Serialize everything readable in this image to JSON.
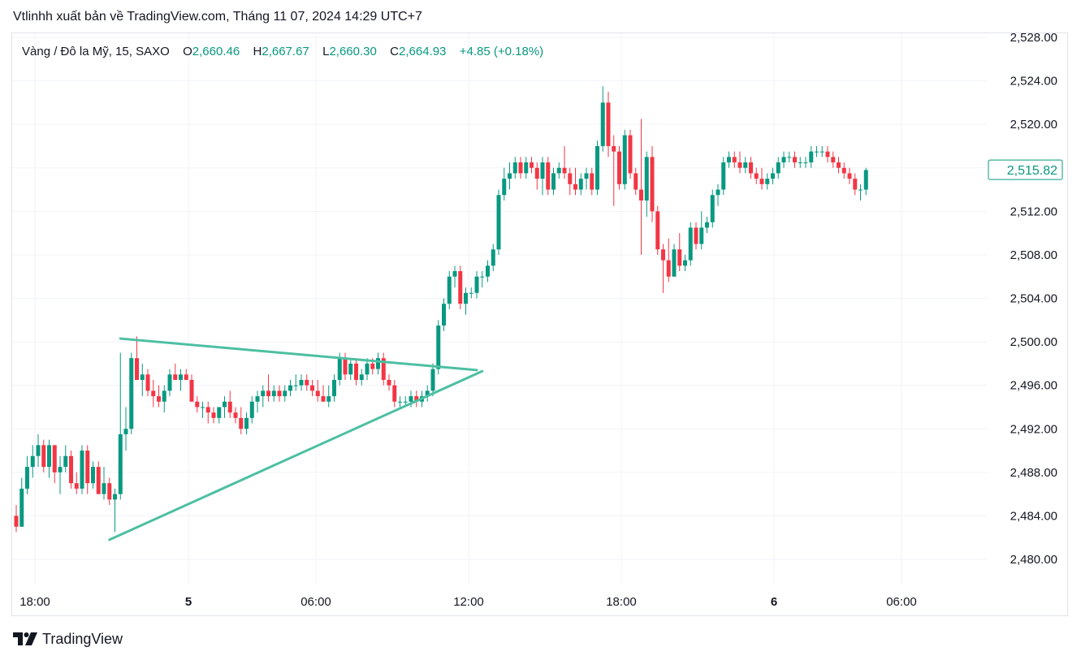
{
  "header": {
    "title": "Vtlinhh xuất bản về TradingView.com, Tháng 11 07, 2024 14:29 UTC+7"
  },
  "legend": {
    "symbol": "Vàng / Đô la Mỹ, 15, SAXO",
    "o_label": "O",
    "o_value": "2,660.46",
    "h_label": "H",
    "h_value": "2,667.67",
    "l_label": "L",
    "l_value": "2,660.30",
    "c_label": "C",
    "c_value": "2,664.93",
    "change": "+4.85 (+0.18%)"
  },
  "price_axis": {
    "ticks": [
      "2,528.00",
      "2,524.00",
      "2,520.00",
      "2,516.00",
      "2,512.00",
      "2,508.00",
      "2,504.00",
      "2,500.00",
      "2,496.00",
      "2,492.00",
      "2,488.00",
      "2,484.00",
      "2,480.00"
    ],
    "last_price": "2,515.82"
  },
  "time_axis": {
    "labels": [
      "18:00",
      "5",
      "06:00",
      "12:00",
      "18:00",
      "6",
      "06:00"
    ]
  },
  "branding": {
    "name": "TradingView"
  },
  "colors": {
    "up": "#089981",
    "down": "#f23645",
    "trendline": "#4dbfa3",
    "grid": "#f0f3fa",
    "text": "#131722"
  },
  "chart_data": {
    "type": "candlestick",
    "title": "Vàng / Đô la Mỹ, 15, SAXO",
    "interval": "15",
    "ylim": [
      2478,
      2529
    ],
    "yticks": [
      2480,
      2484,
      2488,
      2492,
      2496,
      2500,
      2504,
      2508,
      2512,
      2516,
      2520,
      2524,
      2528
    ],
    "xticks": [
      "18:00",
      "5",
      "06:00",
      "12:00",
      "18:00",
      "6",
      "06:00"
    ],
    "grid": true,
    "candles_ohlc": [
      [
        2484.0,
        2485.0,
        2482.5,
        2483.0
      ],
      [
        2483.0,
        2487.5,
        2483.0,
        2486.5
      ],
      [
        2486.5,
        2489.5,
        2486.0,
        2488.5
      ],
      [
        2488.5,
        2490.5,
        2487.5,
        2489.5
      ],
      [
        2489.5,
        2491.5,
        2488.5,
        2490.5
      ],
      [
        2490.5,
        2491.0,
        2488.0,
        2488.5
      ],
      [
        2488.5,
        2491.0,
        2487.5,
        2490.5
      ],
      [
        2490.5,
        2490.5,
        2487.0,
        2488.0
      ],
      [
        2488.0,
        2489.5,
        2486.0,
        2488.5
      ],
      [
        2488.5,
        2490.5,
        2488.0,
        2489.5
      ],
      [
        2489.5,
        2490.0,
        2486.5,
        2487.0
      ],
      [
        2487.0,
        2488.0,
        2486.0,
        2486.5
      ],
      [
        2486.5,
        2490.5,
        2486.0,
        2490.0
      ],
      [
        2490.0,
        2490.5,
        2486.0,
        2487.0
      ],
      [
        2487.0,
        2489.0,
        2486.5,
        2488.5
      ],
      [
        2488.5,
        2489.0,
        2486.0,
        2486.0
      ],
      [
        2486.0,
        2488.5,
        2485.5,
        2487.0
      ],
      [
        2487.0,
        2487.5,
        2485.0,
        2485.5
      ],
      [
        2485.5,
        2486.5,
        2482.5,
        2486.0
      ],
      [
        2486.0,
        2499.0,
        2485.5,
        2491.5
      ],
      [
        2491.5,
        2494.0,
        2490.0,
        2492.0
      ],
      [
        2492.0,
        2499.0,
        2491.5,
        2498.5
      ],
      [
        2498.5,
        2500.5,
        2496.5,
        2496.5
      ],
      [
        2496.5,
        2498.0,
        2495.0,
        2497.0
      ],
      [
        2497.0,
        2497.5,
        2495.0,
        2495.5
      ],
      [
        2495.5,
        2496.5,
        2494.0,
        2495.0
      ],
      [
        2495.0,
        2496.0,
        2494.0,
        2494.5
      ],
      [
        2494.5,
        2496.0,
        2493.5,
        2495.5
      ],
      [
        2495.5,
        2497.5,
        2495.0,
        2497.0
      ],
      [
        2497.0,
        2498.0,
        2496.5,
        2496.5
      ],
      [
        2496.5,
        2497.5,
        2495.5,
        2497.0
      ],
      [
        2497.0,
        2497.5,
        2496.5,
        2496.5
      ],
      [
        2496.5,
        2497.0,
        2494.5,
        2494.5
      ],
      [
        2494.5,
        2495.0,
        2493.5,
        2494.0
      ],
      [
        2494.0,
        2494.5,
        2493.0,
        2494.0
      ],
      [
        2494.0,
        2494.5,
        2492.5,
        2493.5
      ],
      [
        2493.5,
        2494.0,
        2492.5,
        2493.0
      ],
      [
        2493.0,
        2494.0,
        2492.5,
        2494.0
      ],
      [
        2494.0,
        2495.0,
        2493.0,
        2494.5
      ],
      [
        2494.5,
        2495.5,
        2493.0,
        2493.5
      ],
      [
        2493.5,
        2494.0,
        2492.5,
        2493.0
      ],
      [
        2493.0,
        2494.0,
        2491.5,
        2492.0
      ],
      [
        2492.0,
        2493.5,
        2491.5,
        2493.0
      ],
      [
        2493.0,
        2495.0,
        2492.5,
        2494.5
      ],
      [
        2494.5,
        2495.5,
        2493.5,
        2495.0
      ],
      [
        2495.0,
        2496.0,
        2494.0,
        2495.5
      ],
      [
        2495.5,
        2497.0,
        2494.5,
        2495.0
      ],
      [
        2495.0,
        2496.0,
        2494.5,
        2495.5
      ],
      [
        2495.5,
        2496.0,
        2494.5,
        2495.0
      ],
      [
        2495.0,
        2496.0,
        2494.5,
        2495.5
      ],
      [
        2495.5,
        2496.5,
        2495.0,
        2496.0
      ],
      [
        2496.0,
        2497.0,
        2495.5,
        2496.0
      ],
      [
        2496.0,
        2497.0,
        2495.5,
        2496.5
      ],
      [
        2496.5,
        2497.0,
        2495.5,
        2496.0
      ],
      [
        2496.0,
        2496.5,
        2495.0,
        2495.5
      ],
      [
        2495.5,
        2496.5,
        2494.5,
        2495.0
      ],
      [
        2495.0,
        2496.0,
        2494.5,
        2494.5
      ],
      [
        2494.5,
        2496.0,
        2494.0,
        2495.0
      ],
      [
        2495.0,
        2497.0,
        2494.5,
        2496.5
      ],
      [
        2496.5,
        2499.0,
        2496.0,
        2498.5
      ],
      [
        2498.5,
        2499.0,
        2496.5,
        2497.0
      ],
      [
        2497.0,
        2498.5,
        2496.5,
        2498.0
      ],
      [
        2498.0,
        2498.5,
        2496.0,
        2496.5
      ],
      [
        2496.5,
        2497.5,
        2496.0,
        2497.0
      ],
      [
        2497.0,
        2498.5,
        2496.5,
        2498.0
      ],
      [
        2498.0,
        2498.5,
        2497.0,
        2497.5
      ],
      [
        2497.5,
        2499.0,
        2497.0,
        2498.5
      ],
      [
        2498.5,
        2499.0,
        2496.0,
        2496.5
      ],
      [
        2496.5,
        2497.0,
        2495.5,
        2496.0
      ],
      [
        2496.0,
        2496.5,
        2494.0,
        2494.5
      ],
      [
        2494.5,
        2495.0,
        2494.0,
        2494.5
      ],
      [
        2494.5,
        2495.0,
        2494.0,
        2494.5
      ],
      [
        2494.5,
        2495.5,
        2494.0,
        2495.0
      ],
      [
        2495.0,
        2495.5,
        2494.0,
        2494.5
      ],
      [
        2494.5,
        2495.5,
        2494.0,
        2495.0
      ],
      [
        2495.0,
        2496.0,
        2494.5,
        2495.5
      ],
      [
        2495.5,
        2498.0,
        2495.0,
        2497.5
      ],
      [
        2497.5,
        2502.0,
        2497.0,
        2501.5
      ],
      [
        2501.5,
        2504.0,
        2501.0,
        2503.5
      ],
      [
        2503.5,
        2506.5,
        2503.0,
        2506.0
      ],
      [
        2506.0,
        2507.0,
        2505.0,
        2506.5
      ],
      [
        2506.5,
        2507.0,
        2503.0,
        2503.5
      ],
      [
        2503.5,
        2505.0,
        2502.5,
        2504.5
      ],
      [
        2504.5,
        2505.0,
        2504.0,
        2504.5
      ],
      [
        2504.5,
        2506.5,
        2504.0,
        2506.0
      ],
      [
        2506.0,
        2506.5,
        2505.0,
        2506.0
      ],
      [
        2506.0,
        2507.5,
        2505.5,
        2507.0
      ],
      [
        2507.0,
        2509.0,
        2506.5,
        2508.5
      ],
      [
        2508.5,
        2514.0,
        2508.0,
        2513.5
      ],
      [
        2513.5,
        2516.0,
        2513.0,
        2515.0
      ],
      [
        2515.0,
        2516.5,
        2514.0,
        2515.5
      ],
      [
        2515.5,
        2517.0,
        2515.0,
        2516.5
      ],
      [
        2516.5,
        2517.0,
        2515.0,
        2515.5
      ],
      [
        2515.5,
        2517.0,
        2515.0,
        2516.5
      ],
      [
        2516.5,
        2517.0,
        2515.5,
        2516.0
      ],
      [
        2516.0,
        2516.5,
        2514.0,
        2515.0
      ],
      [
        2515.0,
        2517.0,
        2513.5,
        2516.5
      ],
      [
        2516.5,
        2517.0,
        2513.5,
        2514.0
      ],
      [
        2514.0,
        2516.0,
        2513.5,
        2515.5
      ],
      [
        2515.5,
        2516.5,
        2515.0,
        2516.0
      ],
      [
        2516.0,
        2518.0,
        2515.0,
        2515.5
      ],
      [
        2515.5,
        2516.0,
        2513.5,
        2514.5
      ],
      [
        2514.5,
        2516.0,
        2513.5,
        2514.0
      ],
      [
        2514.0,
        2515.5,
        2513.5,
        2515.0
      ],
      [
        2515.0,
        2516.0,
        2514.0,
        2515.5
      ],
      [
        2515.5,
        2516.0,
        2513.5,
        2514.0
      ],
      [
        2514.0,
        2518.5,
        2513.5,
        2518.0
      ],
      [
        2518.0,
        2523.5,
        2517.5,
        2522.0
      ],
      [
        2522.0,
        2523.0,
        2517.0,
        2518.0
      ],
      [
        2518.0,
        2519.0,
        2512.5,
        2517.5
      ],
      [
        2517.5,
        2518.0,
        2514.0,
        2514.5
      ],
      [
        2514.5,
        2519.5,
        2514.0,
        2519.0
      ],
      [
        2519.0,
        2519.5,
        2515.0,
        2515.5
      ],
      [
        2515.5,
        2516.0,
        2513.5,
        2514.0
      ],
      [
        2514.0,
        2520.5,
        2508.0,
        2513.0
      ],
      [
        2513.0,
        2517.5,
        2511.5,
        2517.0
      ],
      [
        2517.0,
        2518.0,
        2511.0,
        2512.0
      ],
      [
        2512.0,
        2512.5,
        2508.0,
        2508.5
      ],
      [
        2508.5,
        2509.0,
        2504.5,
        2507.5
      ],
      [
        2507.5,
        2509.5,
        2505.5,
        2506.0
      ],
      [
        2506.0,
        2509.0,
        2506.0,
        2508.5
      ],
      [
        2508.5,
        2510.0,
        2506.5,
        2507.0
      ],
      [
        2507.0,
        2508.0,
        2506.5,
        2507.5
      ],
      [
        2507.5,
        2511.0,
        2507.0,
        2510.5
      ],
      [
        2510.5,
        2511.0,
        2508.5,
        2509.0
      ],
      [
        2509.0,
        2512.0,
        2508.5,
        2510.5
      ],
      [
        2510.5,
        2511.5,
        2510.0,
        2511.0
      ],
      [
        2511.0,
        2514.0,
        2510.5,
        2513.5
      ],
      [
        2513.5,
        2514.5,
        2512.5,
        2514.0
      ],
      [
        2514.0,
        2517.0,
        2513.5,
        2516.5
      ],
      [
        2516.5,
        2517.5,
        2516.0,
        2517.0
      ],
      [
        2517.0,
        2517.5,
        2516.0,
        2516.5
      ],
      [
        2516.5,
        2517.5,
        2515.5,
        2516.0
      ],
      [
        2516.0,
        2517.0,
        2515.5,
        2516.5
      ],
      [
        2516.5,
        2517.0,
        2515.0,
        2515.5
      ],
      [
        2515.5,
        2516.0,
        2514.5,
        2515.0
      ],
      [
        2515.0,
        2516.0,
        2514.0,
        2514.5
      ],
      [
        2514.5,
        2515.5,
        2514.0,
        2515.0
      ],
      [
        2515.0,
        2516.0,
        2514.5,
        2515.5
      ],
      [
        2515.5,
        2517.0,
        2515.0,
        2516.5
      ],
      [
        2516.5,
        2517.5,
        2516.0,
        2517.0
      ],
      [
        2517.0,
        2517.5,
        2516.5,
        2517.0
      ],
      [
        2517.0,
        2517.5,
        2516.0,
        2516.5
      ],
      [
        2516.5,
        2517.0,
        2516.0,
        2516.5
      ],
      [
        2516.5,
        2517.0,
        2516.0,
        2516.5
      ],
      [
        2516.5,
        2518.0,
        2516.0,
        2517.5
      ],
      [
        2517.5,
        2518.0,
        2517.0,
        2517.5
      ],
      [
        2517.5,
        2518.0,
        2517.0,
        2517.5
      ],
      [
        2517.5,
        2518.0,
        2516.5,
        2517.0
      ],
      [
        2517.0,
        2517.5,
        2516.0,
        2516.5
      ],
      [
        2516.5,
        2517.0,
        2515.5,
        2516.0
      ],
      [
        2516.0,
        2516.5,
        2515.0,
        2515.5
      ],
      [
        2515.5,
        2516.0,
        2514.5,
        2515.0
      ],
      [
        2515.0,
        2515.5,
        2513.5,
        2514.0
      ],
      [
        2514.0,
        2514.5,
        2513.0,
        2514.0
      ],
      [
        2514.0,
        2516.0,
        2513.5,
        2515.8
      ]
    ],
    "trendlines": [
      {
        "name": "upper",
        "from": {
          "bar": 19,
          "price": 2500.3
        },
        "to": {
          "bar": 84,
          "price": 2497.4
        }
      },
      {
        "name": "lower",
        "from": {
          "bar": 17,
          "price": 2481.8
        },
        "to": {
          "bar": 85,
          "price": 2497.3
        }
      }
    ],
    "last_price": 2515.82
  }
}
